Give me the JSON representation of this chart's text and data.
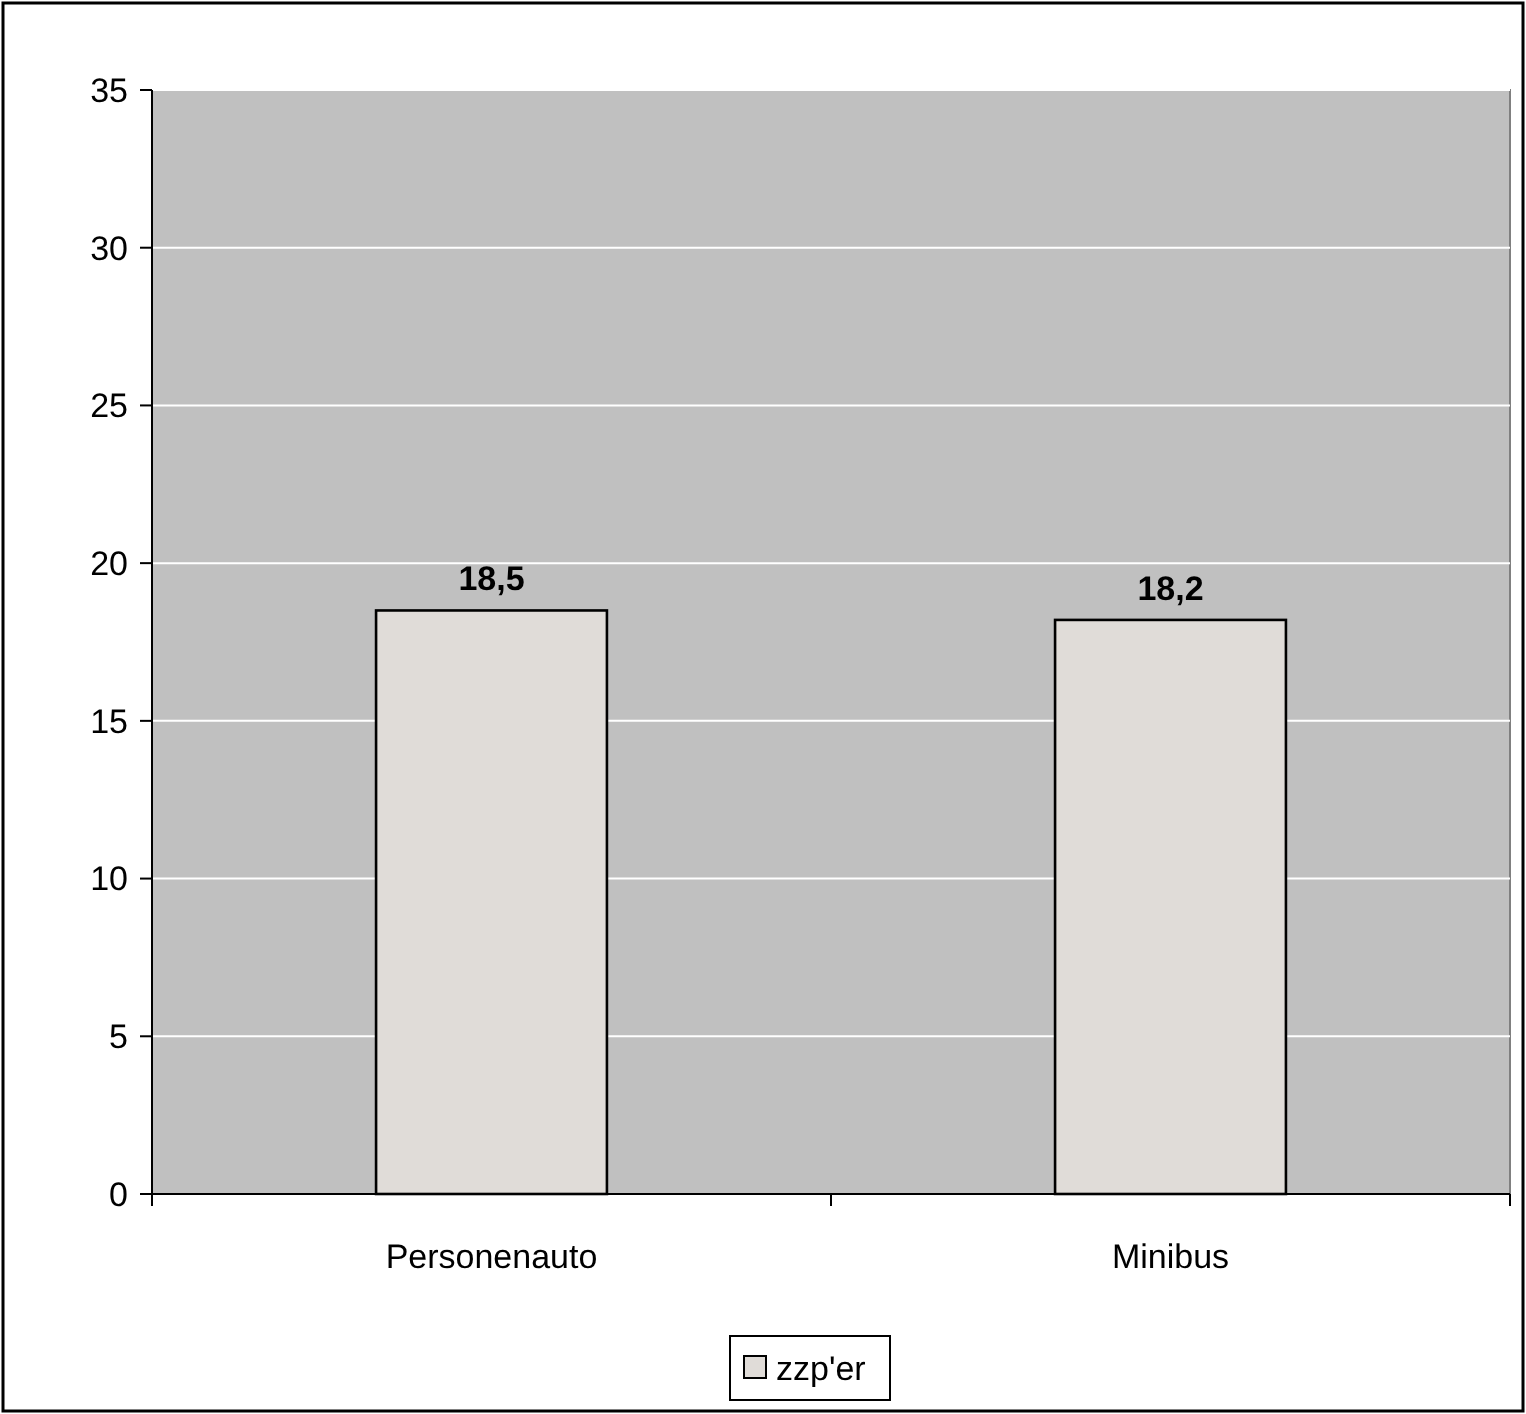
{
  "chart_data": {
    "type": "bar",
    "categories": [
      "Personenauto",
      "Minibus"
    ],
    "series": [
      {
        "name": "zzp'er",
        "color": "#e0dcd8",
        "values": [
          18.5,
          18.2
        ],
        "value_labels": [
          "18,5",
          "18,2"
        ]
      }
    ],
    "ylim": [
      0,
      35
    ],
    "yticks": [
      0,
      5,
      10,
      15,
      20,
      25,
      30,
      35
    ],
    "grid": "y",
    "legend": "bottom"
  }
}
